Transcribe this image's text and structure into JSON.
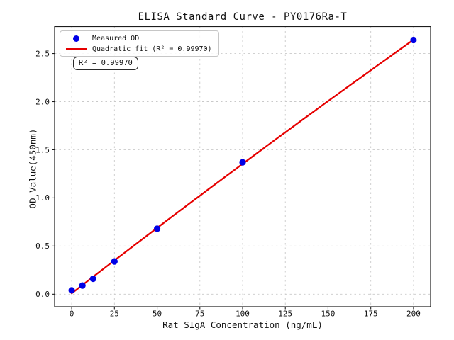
{
  "chart_data": {
    "type": "scatter",
    "title": "ELISA Standard Curve - PY0176Ra-T",
    "xlabel": "Rat SIgA Concentration (ng/mL)",
    "ylabel": "OD Value(450nm)",
    "xlim": [
      -10,
      210
    ],
    "ylim": [
      -0.13,
      2.78
    ],
    "xticks": [
      0,
      25,
      50,
      75,
      100,
      125,
      150,
      175,
      200
    ],
    "xtick_labels": [
      "0",
      "25",
      "50",
      "75",
      "100",
      "125",
      "150",
      "175",
      "200"
    ],
    "yticks": [
      0,
      0.5,
      1,
      1.5,
      2,
      2.5
    ],
    "ytick_labels": [
      "0.0",
      "0.5",
      "1.0",
      "1.5",
      "2.0",
      "2.5"
    ],
    "grid": true,
    "legend_position": "upper left",
    "series": [
      {
        "name": "Measured OD",
        "type": "scatter",
        "marker": "circle",
        "color": "#0000e6",
        "x": [
          0,
          6.25,
          12.5,
          25,
          50,
          100,
          200
        ],
        "y": [
          0.04,
          0.09,
          0.16,
          0.34,
          0.68,
          1.37,
          2.64
        ]
      },
      {
        "name": "Quadratic fit (R² = 0.99970)",
        "type": "line",
        "color": "#e60000",
        "x_range": [
          0,
          200
        ],
        "quadratic_coefficients": {
          "a": 0.0089,
          "b": 0.013733,
          "c": -2.81e-06
        },
        "r_squared": 0.9997
      }
    ],
    "annotation": "R² = 0.99970"
  }
}
